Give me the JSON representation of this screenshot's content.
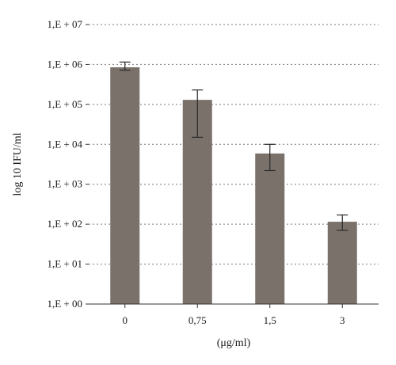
{
  "chart_data": {
    "type": "bar",
    "categories": [
      "0",
      "0,75",
      "1,5",
      "3"
    ],
    "values": [
      850000,
      130000,
      5900,
      115
    ],
    "error_low": [
      720000,
      15000,
      2200,
      70
    ],
    "error_high": [
      1150000,
      230000,
      10000,
      170
    ],
    "bar_color": "#7a716a",
    "ytick_labels": [
      "1,E + 00",
      "1,E + 01",
      "1,E + 02",
      "1,E + 03",
      "1,E + 04",
      "1,E + 05",
      "1,E + 06",
      "1,E + 07"
    ],
    "ylim": [
      1,
      10000000
    ],
    "yscale": "log",
    "xlabel": "(μg/ml)",
    "ylabel": "log 10 IFU/ml",
    "grid": true
  }
}
